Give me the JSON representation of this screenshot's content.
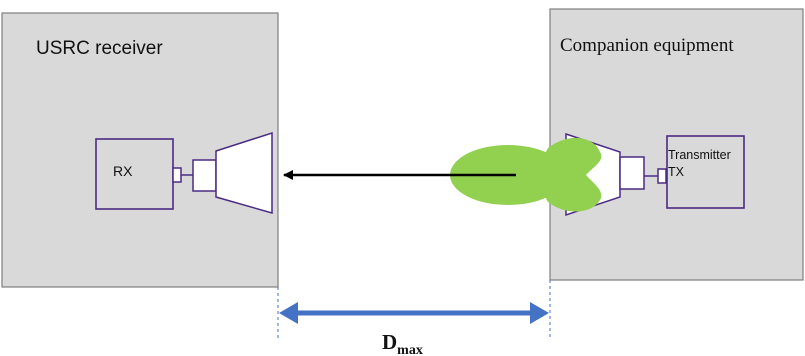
{
  "receiver": {
    "title": "USRC receiver",
    "rx_label": "RX"
  },
  "companion": {
    "title": "Companion equipment",
    "transmitter_line1": "Transmitter",
    "transmitter_line2": "TX"
  },
  "distance": {
    "symbol": "D",
    "subscript": "max"
  },
  "colors": {
    "panel_fill": "#d9d9d9",
    "panel_border": "#7f7f7f",
    "component_stroke": "#4b2a84",
    "beam": "#92d050",
    "arrow": "#000000",
    "dimension_arrow": "#4472c4",
    "guide_line": "#4472c4"
  }
}
